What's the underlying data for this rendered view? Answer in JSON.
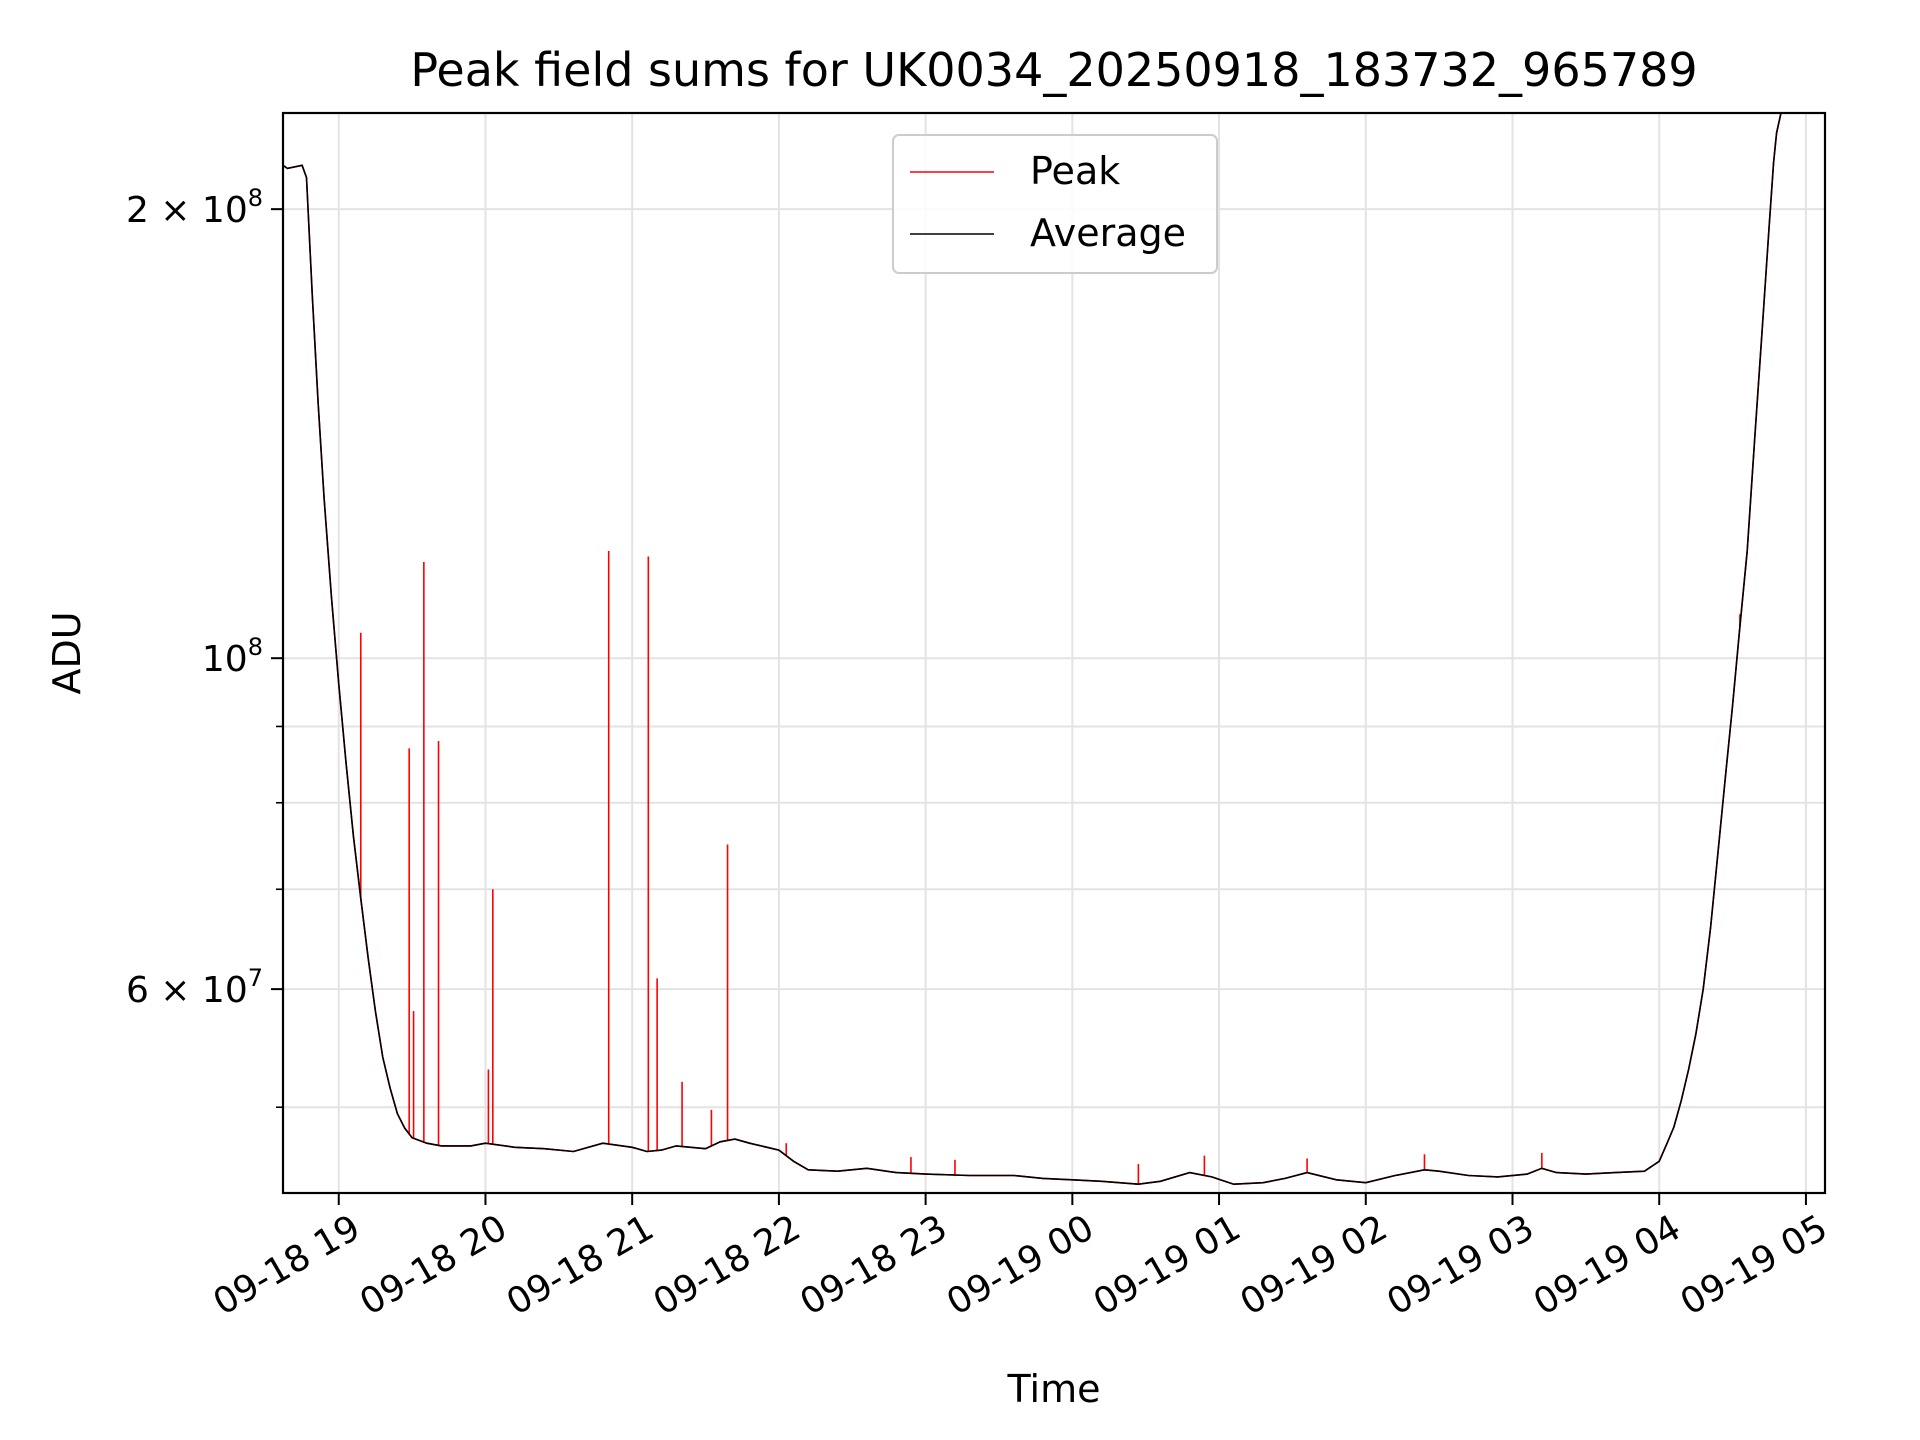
{
  "chart_data": {
    "type": "line",
    "title": "Peak field sums for UK0034_20250918_183732_965789",
    "xlabel": "Time",
    "ylabel": "ADU",
    "yscale": "log",
    "ylim": [
      43800000,
      232000000
    ],
    "xlim_hours": [
      18.62,
      29.13
    ],
    "grid": true,
    "legend_position": "top-center",
    "x_ticks": [
      {
        "hour": 19,
        "label": "09-18 19"
      },
      {
        "hour": 20,
        "label": "09-18 20"
      },
      {
        "hour": 21,
        "label": "09-18 21"
      },
      {
        "hour": 22,
        "label": "09-18 22"
      },
      {
        "hour": 23,
        "label": "09-18 23"
      },
      {
        "hour": 24,
        "label": "09-19 00"
      },
      {
        "hour": 25,
        "label": "09-19 01"
      },
      {
        "hour": 26,
        "label": "09-19 02"
      },
      {
        "hour": 27,
        "label": "09-19 03"
      },
      {
        "hour": 28,
        "label": "09-19 04"
      },
      {
        "hour": 29,
        "label": "09-19 05"
      }
    ],
    "y_ticks_major": [
      {
        "value": 60000000,
        "mantissa": "6",
        "exponent": "7"
      },
      {
        "value": 100000000,
        "mantissa": "",
        "exponent": "8"
      },
      {
        "value": 200000000,
        "mantissa": "2",
        "exponent": "8"
      }
    ],
    "y_ticks_minor": [
      50000000,
      70000000,
      80000000,
      90000000
    ],
    "series": [
      {
        "name": "Peak",
        "color": "#ff0000",
        "points": [
          [
            18.62,
            214000000
          ],
          [
            18.65,
            213000000
          ],
          [
            18.75,
            214000000
          ],
          [
            18.78,
            210000000
          ],
          [
            18.82,
            175000000
          ],
          [
            18.86,
            148000000
          ],
          [
            18.9,
            128000000
          ],
          [
            18.95,
            110000000
          ],
          [
            19.0,
            96000000
          ],
          [
            19.05,
            85000000
          ],
          [
            19.1,
            76000000
          ],
          [
            19.15,
            69000000
          ],
          [
            19.2,
            63000000
          ],
          [
            19.25,
            58000000
          ],
          [
            19.3,
            54000000
          ],
          [
            19.35,
            51500000
          ],
          [
            19.4,
            49500000
          ],
          [
            19.45,
            48400000
          ],
          [
            19.5,
            47700000
          ],
          [
            19.6,
            47300000
          ],
          [
            19.7,
            47100000
          ],
          [
            19.8,
            47100000
          ],
          [
            19.9,
            47100000
          ],
          [
            20.0,
            47300000
          ],
          [
            20.2,
            47000000
          ],
          [
            20.4,
            46900000
          ],
          [
            20.6,
            46700000
          ],
          [
            20.8,
            47300000
          ],
          [
            21.0,
            47000000
          ],
          [
            21.1,
            46700000
          ],
          [
            21.2,
            46800000
          ],
          [
            21.3,
            47100000
          ],
          [
            21.5,
            46900000
          ],
          [
            21.6,
            47400000
          ],
          [
            21.7,
            47600000
          ],
          [
            21.8,
            47300000
          ],
          [
            22.0,
            46800000
          ],
          [
            22.1,
            46000000
          ],
          [
            22.2,
            45400000
          ],
          [
            22.4,
            45300000
          ],
          [
            22.6,
            45500000
          ],
          [
            22.8,
            45200000
          ],
          [
            23.0,
            45100000
          ],
          [
            23.3,
            45000000
          ],
          [
            23.6,
            45000000
          ],
          [
            23.8,
            44800000
          ],
          [
            24.0,
            44700000
          ],
          [
            24.2,
            44600000
          ],
          [
            24.45,
            44400000
          ],
          [
            24.6,
            44600000
          ],
          [
            24.8,
            45200000
          ],
          [
            24.95,
            44900000
          ],
          [
            25.1,
            44400000
          ],
          [
            25.3,
            44500000
          ],
          [
            25.45,
            44800000
          ],
          [
            25.6,
            45200000
          ],
          [
            25.8,
            44700000
          ],
          [
            26.0,
            44500000
          ],
          [
            26.2,
            45000000
          ],
          [
            26.4,
            45400000
          ],
          [
            26.5,
            45300000
          ],
          [
            26.7,
            45000000
          ],
          [
            26.9,
            44900000
          ],
          [
            27.1,
            45100000
          ],
          [
            27.2,
            45500000
          ],
          [
            27.3,
            45200000
          ],
          [
            27.5,
            45100000
          ],
          [
            27.7,
            45200000
          ],
          [
            27.9,
            45300000
          ],
          [
            28.0,
            46000000
          ],
          [
            28.05,
            47200000
          ],
          [
            28.1,
            48500000
          ],
          [
            28.15,
            50500000
          ],
          [
            28.2,
            53000000
          ],
          [
            28.25,
            56000000
          ],
          [
            28.3,
            60000000
          ],
          [
            28.35,
            66000000
          ],
          [
            28.4,
            74000000
          ],
          [
            28.45,
            83000000
          ],
          [
            28.5,
            93000000
          ],
          [
            28.55,
            105000000
          ],
          [
            28.6,
            118000000
          ],
          [
            28.65,
            140000000
          ],
          [
            28.7,
            165000000
          ],
          [
            28.75,
            195000000
          ],
          [
            28.78,
            215000000
          ],
          [
            28.8,
            225000000
          ],
          [
            28.83,
            232000000
          ],
          [
            29.13,
            232000000
          ]
        ],
        "spikes": [
          [
            19.15,
            104000000
          ],
          [
            19.48,
            87000000
          ],
          [
            19.51,
            58000000
          ],
          [
            19.58,
            116000000
          ],
          [
            19.68,
            88000000
          ],
          [
            20.02,
            53000000
          ],
          [
            20.05,
            70000000
          ],
          [
            20.84,
            118000000
          ],
          [
            21.11,
            117000000
          ],
          [
            21.17,
            61000000
          ],
          [
            21.34,
            52000000
          ],
          [
            21.54,
            49800000
          ],
          [
            21.65,
            75000000
          ],
          [
            22.05,
            47300000
          ],
          [
            22.9,
            46300000
          ],
          [
            23.2,
            46100000
          ],
          [
            24.45,
            45800000
          ],
          [
            24.9,
            46400000
          ],
          [
            25.6,
            46200000
          ],
          [
            26.4,
            46500000
          ],
          [
            27.2,
            46600000
          ],
          [
            28.55,
            107000000
          ]
        ]
      },
      {
        "name": "Average",
        "color": "#000000",
        "points": [
          [
            18.62,
            214000000
          ],
          [
            18.65,
            213000000
          ],
          [
            18.75,
            214000000
          ],
          [
            18.78,
            210000000
          ],
          [
            18.82,
            175000000
          ],
          [
            18.86,
            148000000
          ],
          [
            18.9,
            128000000
          ],
          [
            18.95,
            110000000
          ],
          [
            19.0,
            96000000
          ],
          [
            19.05,
            85000000
          ],
          [
            19.1,
            76000000
          ],
          [
            19.15,
            69000000
          ],
          [
            19.2,
            63000000
          ],
          [
            19.25,
            58000000
          ],
          [
            19.3,
            54000000
          ],
          [
            19.35,
            51500000
          ],
          [
            19.4,
            49500000
          ],
          [
            19.45,
            48400000
          ],
          [
            19.5,
            47700000
          ],
          [
            19.6,
            47300000
          ],
          [
            19.7,
            47100000
          ],
          [
            19.8,
            47100000
          ],
          [
            19.9,
            47100000
          ],
          [
            20.0,
            47300000
          ],
          [
            20.2,
            47000000
          ],
          [
            20.4,
            46900000
          ],
          [
            20.6,
            46700000
          ],
          [
            20.8,
            47300000
          ],
          [
            21.0,
            47000000
          ],
          [
            21.1,
            46700000
          ],
          [
            21.2,
            46800000
          ],
          [
            21.3,
            47100000
          ],
          [
            21.5,
            46900000
          ],
          [
            21.6,
            47400000
          ],
          [
            21.7,
            47600000
          ],
          [
            21.8,
            47300000
          ],
          [
            22.0,
            46800000
          ],
          [
            22.1,
            46000000
          ],
          [
            22.2,
            45400000
          ],
          [
            22.4,
            45300000
          ],
          [
            22.6,
            45500000
          ],
          [
            22.8,
            45200000
          ],
          [
            23.0,
            45100000
          ],
          [
            23.3,
            45000000
          ],
          [
            23.6,
            45000000
          ],
          [
            23.8,
            44800000
          ],
          [
            24.0,
            44700000
          ],
          [
            24.2,
            44600000
          ],
          [
            24.45,
            44400000
          ],
          [
            24.6,
            44600000
          ],
          [
            24.8,
            45200000
          ],
          [
            24.95,
            44900000
          ],
          [
            25.1,
            44400000
          ],
          [
            25.3,
            44500000
          ],
          [
            25.45,
            44800000
          ],
          [
            25.6,
            45200000
          ],
          [
            25.8,
            44700000
          ],
          [
            26.0,
            44500000
          ],
          [
            26.2,
            45000000
          ],
          [
            26.4,
            45400000
          ],
          [
            26.5,
            45300000
          ],
          [
            26.7,
            45000000
          ],
          [
            26.9,
            44900000
          ],
          [
            27.1,
            45100000
          ],
          [
            27.2,
            45500000
          ],
          [
            27.3,
            45200000
          ],
          [
            27.5,
            45100000
          ],
          [
            27.7,
            45200000
          ],
          [
            27.9,
            45300000
          ],
          [
            28.0,
            46000000
          ],
          [
            28.05,
            47200000
          ],
          [
            28.1,
            48500000
          ],
          [
            28.15,
            50500000
          ],
          [
            28.2,
            53000000
          ],
          [
            28.25,
            56000000
          ],
          [
            28.3,
            60000000
          ],
          [
            28.35,
            66000000
          ],
          [
            28.4,
            74000000
          ],
          [
            28.45,
            83000000
          ],
          [
            28.5,
            93000000
          ],
          [
            28.55,
            105000000
          ],
          [
            28.6,
            118000000
          ],
          [
            28.65,
            140000000
          ],
          [
            28.7,
            165000000
          ],
          [
            28.75,
            195000000
          ],
          [
            28.78,
            215000000
          ],
          [
            28.8,
            225000000
          ],
          [
            28.83,
            232000000
          ],
          [
            29.13,
            232000000
          ]
        ]
      }
    ]
  }
}
